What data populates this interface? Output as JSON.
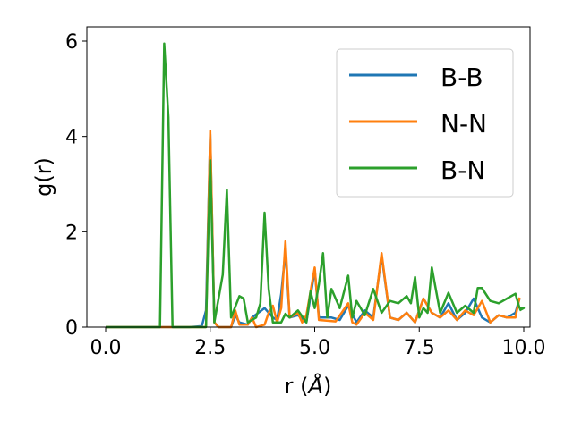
{
  "chart_data": {
    "type": "line",
    "title": "",
    "xlabel": "r (",
    "xlabel_unit": "Å",
    "xlabel_close": ")",
    "ylabel": "g(r)",
    "xlim": [
      -0.45,
      10.15
    ],
    "ylim": [
      0,
      6.3
    ],
    "xticks": [
      0.0,
      2.5,
      5.0,
      7.5,
      10.0
    ],
    "xtick_labels": [
      "0.0",
      "2.5",
      "5.0",
      "7.5",
      "10.0"
    ],
    "yticks": [
      0,
      2,
      4,
      6
    ],
    "ytick_labels": [
      "0",
      "2",
      "4",
      "6"
    ],
    "grid": false,
    "legend_position": "top-right",
    "series": [
      {
        "name": "B-B",
        "color": "#1f77b4",
        "points": [
          [
            0,
            0
          ],
          [
            0.5,
            0
          ],
          [
            1.0,
            0
          ],
          [
            1.5,
            0
          ],
          [
            2.0,
            0
          ],
          [
            2.3,
            0.02
          ],
          [
            2.4,
            0.35
          ],
          [
            2.5,
            4.05
          ],
          [
            2.6,
            0.1
          ],
          [
            2.7,
            0
          ],
          [
            3.0,
            0
          ],
          [
            3.1,
            0.25
          ],
          [
            3.2,
            0.1
          ],
          [
            3.4,
            0.05
          ],
          [
            3.5,
            0.2
          ],
          [
            3.8,
            0.4
          ],
          [
            4.0,
            0.2
          ],
          [
            4.1,
            0.15
          ],
          [
            4.2,
            0.7
          ],
          [
            4.3,
            1.6
          ],
          [
            4.4,
            0.2
          ],
          [
            4.6,
            0.25
          ],
          [
            4.8,
            0.1
          ],
          [
            5.0,
            1.2
          ],
          [
            5.1,
            0.2
          ],
          [
            5.4,
            0.2
          ],
          [
            5.6,
            0.15
          ],
          [
            5.8,
            0.45
          ],
          [
            6.0,
            0.1
          ],
          [
            6.2,
            0.35
          ],
          [
            6.4,
            0.2
          ],
          [
            6.6,
            1.5
          ],
          [
            6.8,
            0.2
          ],
          [
            7.0,
            0.15
          ],
          [
            7.2,
            0.3
          ],
          [
            7.4,
            0.1
          ],
          [
            7.6,
            0.6
          ],
          [
            7.8,
            0.3
          ],
          [
            8.0,
            0.2
          ],
          [
            8.2,
            0.5
          ],
          [
            8.4,
            0.15
          ],
          [
            8.6,
            0.3
          ],
          [
            8.8,
            0.6
          ],
          [
            9.0,
            0.2
          ],
          [
            9.2,
            0.1
          ],
          [
            9.4,
            0.25
          ],
          [
            9.6,
            0.2
          ],
          [
            9.8,
            0.3
          ],
          [
            9.9,
            0.6
          ]
        ]
      },
      {
        "name": "N-N",
        "color": "#ff7f0e",
        "points": [
          [
            0,
            0
          ],
          [
            0.5,
            0
          ],
          [
            1.0,
            0
          ],
          [
            1.5,
            0
          ],
          [
            2.0,
            0
          ],
          [
            2.4,
            0
          ],
          [
            2.5,
            4.12
          ],
          [
            2.6,
            0.1
          ],
          [
            2.7,
            0
          ],
          [
            3.0,
            0
          ],
          [
            3.1,
            0.35
          ],
          [
            3.2,
            0.05
          ],
          [
            3.4,
            0.05
          ],
          [
            3.5,
            0.2
          ],
          [
            3.6,
            0
          ],
          [
            3.8,
            0.05
          ],
          [
            3.9,
            0.3
          ],
          [
            4.0,
            0.45
          ],
          [
            4.1,
            0.1
          ],
          [
            4.2,
            0.4
          ],
          [
            4.3,
            1.8
          ],
          [
            4.4,
            0.2
          ],
          [
            4.6,
            0.3
          ],
          [
            4.7,
            0.1
          ],
          [
            4.8,
            0.25
          ],
          [
            5.0,
            1.25
          ],
          [
            5.1,
            0.15
          ],
          [
            5.5,
            0.12
          ],
          [
            5.8,
            0.5
          ],
          [
            5.9,
            0.1
          ],
          [
            6.0,
            0.05
          ],
          [
            6.2,
            0.3
          ],
          [
            6.4,
            0.15
          ],
          [
            6.6,
            1.55
          ],
          [
            6.8,
            0.2
          ],
          [
            7.0,
            0.15
          ],
          [
            7.2,
            0.3
          ],
          [
            7.4,
            0.1
          ],
          [
            7.6,
            0.6
          ],
          [
            7.8,
            0.3
          ],
          [
            8.0,
            0.2
          ],
          [
            8.2,
            0.35
          ],
          [
            8.4,
            0.15
          ],
          [
            8.6,
            0.35
          ],
          [
            8.8,
            0.25
          ],
          [
            9.0,
            0.55
          ],
          [
            9.2,
            0.1
          ],
          [
            9.4,
            0.25
          ],
          [
            9.6,
            0.2
          ],
          [
            9.8,
            0.2
          ],
          [
            9.9,
            0.62
          ]
        ]
      },
      {
        "name": "B-N",
        "color": "#2ca02c",
        "points": [
          [
            0,
            0
          ],
          [
            0.5,
            0
          ],
          [
            1.0,
            0
          ],
          [
            1.3,
            0
          ],
          [
            1.4,
            5.95
          ],
          [
            1.5,
            4.4
          ],
          [
            1.6,
            0
          ],
          [
            2.0,
            0
          ],
          [
            2.4,
            0
          ],
          [
            2.5,
            3.5
          ],
          [
            2.6,
            0.1
          ],
          [
            2.8,
            1.1
          ],
          [
            2.9,
            2.88
          ],
          [
            3.0,
            0.2
          ],
          [
            3.2,
            0.65
          ],
          [
            3.3,
            0.6
          ],
          [
            3.4,
            0.1
          ],
          [
            3.6,
            0.2
          ],
          [
            3.7,
            0.5
          ],
          [
            3.8,
            2.4
          ],
          [
            3.9,
            0.8
          ],
          [
            4.0,
            0.1
          ],
          [
            4.2,
            0.1
          ],
          [
            4.3,
            0.28
          ],
          [
            4.4,
            0.2
          ],
          [
            4.6,
            0.35
          ],
          [
            4.8,
            0.1
          ],
          [
            4.9,
            0.75
          ],
          [
            5.0,
            0.4
          ],
          [
            5.1,
            0.9
          ],
          [
            5.2,
            1.55
          ],
          [
            5.3,
            0.2
          ],
          [
            5.4,
            0.8
          ],
          [
            5.6,
            0.4
          ],
          [
            5.8,
            1.08
          ],
          [
            5.9,
            0.2
          ],
          [
            6.0,
            0.55
          ],
          [
            6.2,
            0.25
          ],
          [
            6.4,
            0.8
          ],
          [
            6.6,
            0.3
          ],
          [
            6.8,
            0.55
          ],
          [
            7.0,
            0.5
          ],
          [
            7.2,
            0.65
          ],
          [
            7.3,
            0.5
          ],
          [
            7.4,
            1.05
          ],
          [
            7.5,
            0.2
          ],
          [
            7.6,
            0.4
          ],
          [
            7.7,
            0.3
          ],
          [
            7.8,
            1.25
          ],
          [
            8.0,
            0.3
          ],
          [
            8.2,
            0.72
          ],
          [
            8.4,
            0.3
          ],
          [
            8.6,
            0.45
          ],
          [
            8.8,
            0.3
          ],
          [
            8.9,
            0.82
          ],
          [
            9.0,
            0.82
          ],
          [
            9.2,
            0.55
          ],
          [
            9.4,
            0.5
          ],
          [
            9.6,
            0.6
          ],
          [
            9.8,
            0.7
          ],
          [
            9.9,
            0.4
          ],
          [
            10.0,
            0.4
          ],
          [
            9.9,
            0.35
          ]
        ]
      }
    ]
  }
}
